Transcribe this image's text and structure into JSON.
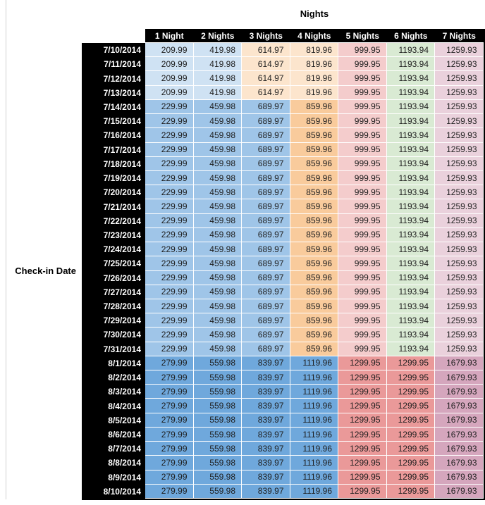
{
  "chart_data": {
    "type": "table",
    "title": "Nights",
    "row_axis_label": "Check-in Date",
    "columns": [
      "1 Night",
      "2 Nights",
      "3 Nights",
      "4 Nights",
      "5 Nights",
      "6 Nights",
      "7 Nights"
    ],
    "rows": [
      {
        "date": "7/10/2014",
        "band": "A",
        "values": [
          "209.99",
          "419.98",
          "614.97",
          "819.96",
          "999.95",
          "1193.94",
          "1259.93"
        ]
      },
      {
        "date": "7/11/2014",
        "band": "A",
        "values": [
          "209.99",
          "419.98",
          "614.97",
          "819.96",
          "999.95",
          "1193.94",
          "1259.93"
        ]
      },
      {
        "date": "7/12/2014",
        "band": "A",
        "values": [
          "209.99",
          "419.98",
          "614.97",
          "819.96",
          "999.95",
          "1193.94",
          "1259.93"
        ]
      },
      {
        "date": "7/13/2014",
        "band": "A",
        "values": [
          "209.99",
          "419.98",
          "614.97",
          "819.96",
          "999.95",
          "1193.94",
          "1259.93"
        ]
      },
      {
        "date": "7/14/2014",
        "band": "B",
        "values": [
          "229.99",
          "459.98",
          "689.97",
          "859.96",
          "999.95",
          "1193.94",
          "1259.93"
        ]
      },
      {
        "date": "7/15/2014",
        "band": "B",
        "values": [
          "229.99",
          "459.98",
          "689.97",
          "859.96",
          "999.95",
          "1193.94",
          "1259.93"
        ]
      },
      {
        "date": "7/16/2014",
        "band": "B",
        "values": [
          "229.99",
          "459.98",
          "689.97",
          "859.96",
          "999.95",
          "1193.94",
          "1259.93"
        ]
      },
      {
        "date": "7/17/2014",
        "band": "B",
        "values": [
          "229.99",
          "459.98",
          "689.97",
          "859.96",
          "999.95",
          "1193.94",
          "1259.93"
        ]
      },
      {
        "date": "7/18/2014",
        "band": "B",
        "values": [
          "229.99",
          "459.98",
          "689.97",
          "859.96",
          "999.95",
          "1193.94",
          "1259.93"
        ]
      },
      {
        "date": "7/19/2014",
        "band": "B",
        "values": [
          "229.99",
          "459.98",
          "689.97",
          "859.96",
          "999.95",
          "1193.94",
          "1259.93"
        ]
      },
      {
        "date": "7/20/2014",
        "band": "B",
        "values": [
          "229.99",
          "459.98",
          "689.97",
          "859.96",
          "999.95",
          "1193.94",
          "1259.93"
        ]
      },
      {
        "date": "7/21/2014",
        "band": "B",
        "values": [
          "229.99",
          "459.98",
          "689.97",
          "859.96",
          "999.95",
          "1193.94",
          "1259.93"
        ]
      },
      {
        "date": "7/22/2014",
        "band": "B",
        "values": [
          "229.99",
          "459.98",
          "689.97",
          "859.96",
          "999.95",
          "1193.94",
          "1259.93"
        ]
      },
      {
        "date": "7/23/2014",
        "band": "B",
        "values": [
          "229.99",
          "459.98",
          "689.97",
          "859.96",
          "999.95",
          "1193.94",
          "1259.93"
        ]
      },
      {
        "date": "7/24/2014",
        "band": "B",
        "values": [
          "229.99",
          "459.98",
          "689.97",
          "859.96",
          "999.95",
          "1193.94",
          "1259.93"
        ]
      },
      {
        "date": "7/25/2014",
        "band": "B",
        "values": [
          "229.99",
          "459.98",
          "689.97",
          "859.96",
          "999.95",
          "1193.94",
          "1259.93"
        ]
      },
      {
        "date": "7/26/2014",
        "band": "B",
        "values": [
          "229.99",
          "459.98",
          "689.97",
          "859.96",
          "999.95",
          "1193.94",
          "1259.93"
        ]
      },
      {
        "date": "7/27/2014",
        "band": "B",
        "values": [
          "229.99",
          "459.98",
          "689.97",
          "859.96",
          "999.95",
          "1193.94",
          "1259.93"
        ]
      },
      {
        "date": "7/28/2014",
        "band": "B",
        "values": [
          "229.99",
          "459.98",
          "689.97",
          "859.96",
          "999.95",
          "1193.94",
          "1259.93"
        ]
      },
      {
        "date": "7/29/2014",
        "band": "B",
        "values": [
          "229.99",
          "459.98",
          "689.97",
          "859.96",
          "999.95",
          "1193.94",
          "1259.93"
        ]
      },
      {
        "date": "7/30/2014",
        "band": "B",
        "values": [
          "229.99",
          "459.98",
          "689.97",
          "859.96",
          "999.95",
          "1193.94",
          "1259.93"
        ]
      },
      {
        "date": "7/31/2014",
        "band": "B",
        "values": [
          "229.99",
          "459.98",
          "689.97",
          "859.96",
          "999.95",
          "1193.94",
          "1259.93"
        ]
      },
      {
        "date": "8/1/2014",
        "band": "C",
        "values": [
          "279.99",
          "559.98",
          "839.97",
          "1119.96",
          "1299.95",
          "1299.95",
          "1679.93"
        ]
      },
      {
        "date": "8/2/2014",
        "band": "C",
        "values": [
          "279.99",
          "559.98",
          "839.97",
          "1119.96",
          "1299.95",
          "1299.95",
          "1679.93"
        ]
      },
      {
        "date": "8/3/2014",
        "band": "C",
        "values": [
          "279.99",
          "559.98",
          "839.97",
          "1119.96",
          "1299.95",
          "1299.95",
          "1679.93"
        ]
      },
      {
        "date": "8/4/2014",
        "band": "C",
        "values": [
          "279.99",
          "559.98",
          "839.97",
          "1119.96",
          "1299.95",
          "1299.95",
          "1679.93"
        ]
      },
      {
        "date": "8/5/2014",
        "band": "C",
        "values": [
          "279.99",
          "559.98",
          "839.97",
          "1119.96",
          "1299.95",
          "1299.95",
          "1679.93"
        ]
      },
      {
        "date": "8/6/2014",
        "band": "C",
        "values": [
          "279.99",
          "559.98",
          "839.97",
          "1119.96",
          "1299.95",
          "1299.95",
          "1679.93"
        ]
      },
      {
        "date": "8/7/2014",
        "band": "C",
        "values": [
          "279.99",
          "559.98",
          "839.97",
          "1119.96",
          "1299.95",
          "1299.95",
          "1679.93"
        ]
      },
      {
        "date": "8/8/2014",
        "band": "C",
        "values": [
          "279.99",
          "559.98",
          "839.97",
          "1119.96",
          "1299.95",
          "1299.95",
          "1679.93"
        ]
      },
      {
        "date": "8/9/2014",
        "band": "C",
        "values": [
          "279.99",
          "559.98",
          "839.97",
          "1119.96",
          "1299.95",
          "1299.95",
          "1679.93"
        ]
      },
      {
        "date": "8/10/2014",
        "band": "C",
        "values": [
          "279.99",
          "559.98",
          "839.97",
          "1119.96",
          "1299.95",
          "1299.95",
          "1679.93"
        ]
      }
    ]
  },
  "formatting": {
    "header_bg": "#000000",
    "header_text": "#ffffff",
    "value_text": "#1e1e1e",
    "sheet_gridline_color": "#d0d0d0",
    "palette": {
      "blue3": "#cfe2f3",
      "blue2": "#9fc5e8",
      "blue1": "#6fa8dc",
      "orange3": "#fce5cd",
      "orange2": "#f9cb9c",
      "red3": "#f4cccc",
      "red2": "#ea9999",
      "green3": "#d9ead3",
      "magenta3": "#ead1dc",
      "magenta2": "#d5a6bd"
    },
    "band_colors": {
      "A": [
        "blue3",
        "blue3",
        "orange3",
        "orange3",
        "red3",
        "green3",
        "magenta3"
      ],
      "B": [
        "blue2",
        "blue2",
        "blue2",
        "orange2",
        "red3",
        "green3",
        "magenta3"
      ],
      "C": [
        "blue1",
        "blue1",
        "blue1",
        "blue1",
        "red2",
        "red2",
        "magenta2"
      ]
    }
  }
}
